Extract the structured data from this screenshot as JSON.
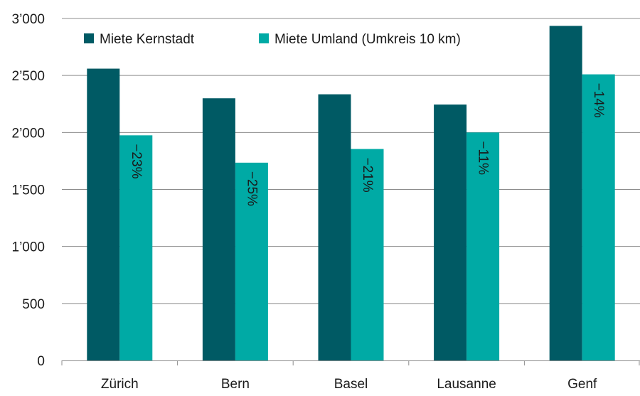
{
  "chart_data": {
    "type": "bar",
    "title": "",
    "xlabel": "",
    "ylabel": "",
    "categories": [
      "Zürich",
      "Bern",
      "Basel",
      "Lausanne",
      "Genf"
    ],
    "series": [
      {
        "name": "Miete Kernstadt",
        "color": "#005a64",
        "values": [
          2560,
          2300,
          2335,
          2245,
          2935
        ]
      },
      {
        "name": "Miete Umland (Umkreis 10 km)",
        "color": "#00aaa5",
        "values": [
          1975,
          1735,
          1855,
          2000,
          2510
        ]
      }
    ],
    "bar_labels": [
      "−23%",
      "−25%",
      "−21%",
      "−11%",
      "−14%"
    ],
    "ylim": [
      0,
      3000
    ],
    "yticks": [
      0,
      500,
      1000,
      1500,
      2000,
      2500,
      3000
    ],
    "ytick_labels": [
      "0",
      "500",
      "1’000",
      "1’500",
      "2’000",
      "2’500",
      "3’000"
    ],
    "grid": true,
    "legend_position": "top-left"
  }
}
